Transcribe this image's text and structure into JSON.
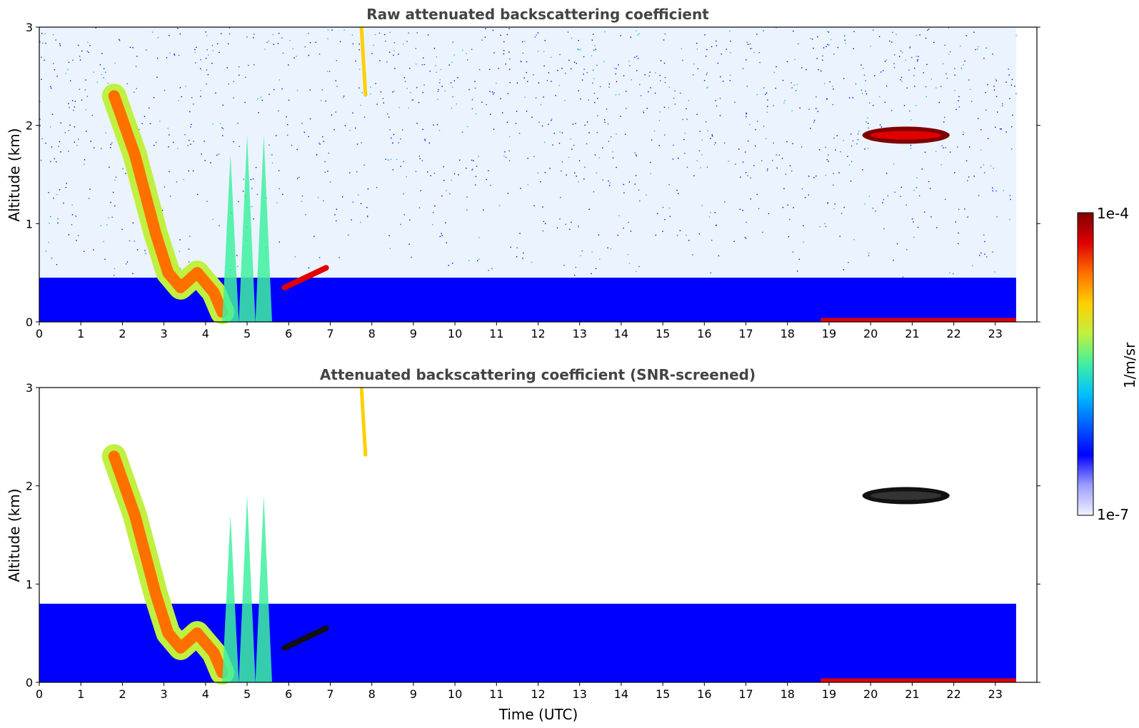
{
  "chart_data": [
    {
      "type": "heatmap",
      "title": "Raw attenuated backscattering coefficient",
      "xlabel": "",
      "ylabel": "Altitude (km)",
      "xlim": [
        0,
        24
      ],
      "ylim": [
        0,
        3
      ],
      "xticks": [
        0,
        1,
        2,
        3,
        4,
        5,
        6,
        7,
        8,
        9,
        10,
        11,
        12,
        13,
        14,
        15,
        16,
        17,
        18,
        19,
        20,
        21,
        22,
        23
      ],
      "yticks": [
        0,
        1,
        2,
        3
      ],
      "features": [
        {
          "name": "noise",
          "t0": 0,
          "t1": 23.5,
          "alt_top": 3.0,
          "level": "low-mid"
        },
        {
          "name": "boundary-layer",
          "t0": 0,
          "t1": 23.5,
          "alt_top": 0.45,
          "level": "low"
        },
        {
          "name": "descending-layer",
          "t_start": 1.8,
          "alt_start": 2.3,
          "t_end": 3.3,
          "alt_end": 0.35,
          "level": "high"
        },
        {
          "name": "cloud",
          "t0": 19.8,
          "t1": 21.9,
          "alt": 1.9,
          "level": "max"
        }
      ]
    },
    {
      "type": "heatmap",
      "title": "Attenuated backscattering coefficient (SNR-screened)",
      "xlabel": "Time (UTC)",
      "ylabel": "Altitude (km)",
      "xlim": [
        0,
        24
      ],
      "ylim": [
        0,
        3
      ],
      "xticks": [
        0,
        1,
        2,
        3,
        4,
        5,
        6,
        7,
        8,
        9,
        10,
        11,
        12,
        13,
        14,
        15,
        16,
        17,
        18,
        19,
        20,
        21,
        22,
        23
      ],
      "yticks": [
        0,
        1,
        2,
        3
      ],
      "features": [
        {
          "name": "boundary-layer",
          "t0": 0,
          "t1": 23.5,
          "alt_top": 0.8,
          "level": "low"
        },
        {
          "name": "descending-layer",
          "t_start": 1.8,
          "alt_start": 2.3,
          "t_end": 3.3,
          "alt_end": 0.35,
          "level": "high"
        },
        {
          "name": "cloud",
          "t0": 19.8,
          "t1": 21.9,
          "alt": 1.9,
          "level": "saturated"
        }
      ]
    }
  ],
  "colorbar": {
    "label": "1/m/sr",
    "min_label": "1e-7",
    "max_label": "1e-4",
    "colors": [
      "#f2f2ff",
      "#9c9cff",
      "#0000ff",
      "#0060ff",
      "#00c0ff",
      "#40f0a0",
      "#c0f040",
      "#ffd000",
      "#ff7000",
      "#e00000",
      "#800000"
    ]
  }
}
